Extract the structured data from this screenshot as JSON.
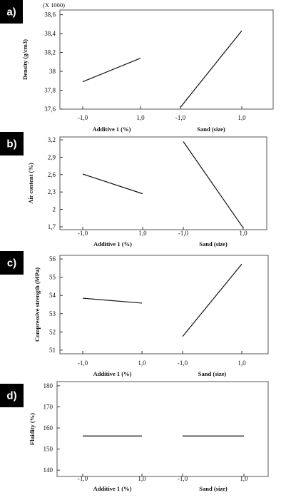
{
  "chart_data": [
    {
      "type": "line",
      "panel_label": "a)",
      "ylabel": "Density (g/cm3)",
      "y_multiplier": "(X 1000)",
      "ylim": [
        37.6,
        38.65
      ],
      "yticks": [
        37.6,
        37.8,
        38.0,
        38.2,
        38.4,
        38.6
      ],
      "ytick_labels": [
        "37,6",
        "37,8",
        "38",
        "38,2",
        "38,4",
        "38,6"
      ],
      "factors": [
        {
          "xlabel": "Additive 1 (%)",
          "xtick_labels": [
            "-1,0",
            "1,0"
          ],
          "values": [
            37.89,
            38.14
          ]
        },
        {
          "xlabel": "Sand (size)",
          "xtick_labels": [
            "-1,0",
            "1,0"
          ],
          "values": [
            37.62,
            38.43
          ]
        }
      ]
    },
    {
      "type": "line",
      "panel_label": "b)",
      "ylabel": "Air content (%)",
      "ylim": [
        1.65,
        3.25
      ],
      "yticks": [
        1.7,
        2.0,
        2.3,
        2.6,
        2.9,
        3.2
      ],
      "ytick_labels": [
        "1,7",
        "2",
        "2,3",
        "2,6",
        "2,9",
        "3,2"
      ],
      "factors": [
        {
          "xlabel": "Additive 1 (%)",
          "xtick_labels": [
            "-1,0",
            "1,0"
          ],
          "values": [
            2.61,
            2.27
          ]
        },
        {
          "xlabel": "Sand (size)",
          "xtick_labels": [
            "-1,0",
            "1,0"
          ],
          "values": [
            3.17,
            1.68
          ]
        }
      ]
    },
    {
      "type": "line",
      "panel_label": "c)",
      "ylabel": "Compressive strength (MPa)",
      "ylim": [
        50.8,
        56.2
      ],
      "yticks": [
        51,
        52,
        53,
        54,
        55,
        56
      ],
      "ytick_labels": [
        "51",
        "52",
        "53",
        "54",
        "55",
        "56"
      ],
      "factors": [
        {
          "xlabel": "Additive 1 (%)",
          "xtick_labels": [
            "-1,0",
            "1,0"
          ],
          "values": [
            53.85,
            53.58
          ]
        },
        {
          "xlabel": "Sand (size)",
          "xtick_labels": [
            "-1,0",
            "1,0"
          ],
          "values": [
            51.75,
            55.72
          ]
        }
      ]
    },
    {
      "type": "line",
      "panel_label": "d)",
      "ylabel": "Fluidity (%)",
      "ylim": [
        137,
        182
      ],
      "yticks": [
        140,
        150,
        160,
        170,
        180
      ],
      "ytick_labels": [
        "140",
        "150",
        "160",
        "170",
        "180"
      ],
      "factors": [
        {
          "xlabel": "Additive 1 (%)",
          "xtick_labels": [
            "-1,0",
            "1,0"
          ],
          "values": [
            156.2,
            156.2
          ]
        },
        {
          "xlabel": "Sand (size)",
          "xtick_labels": [
            "-1,0",
            "1,0"
          ],
          "values": [
            156.2,
            156.2
          ]
        }
      ]
    }
  ]
}
